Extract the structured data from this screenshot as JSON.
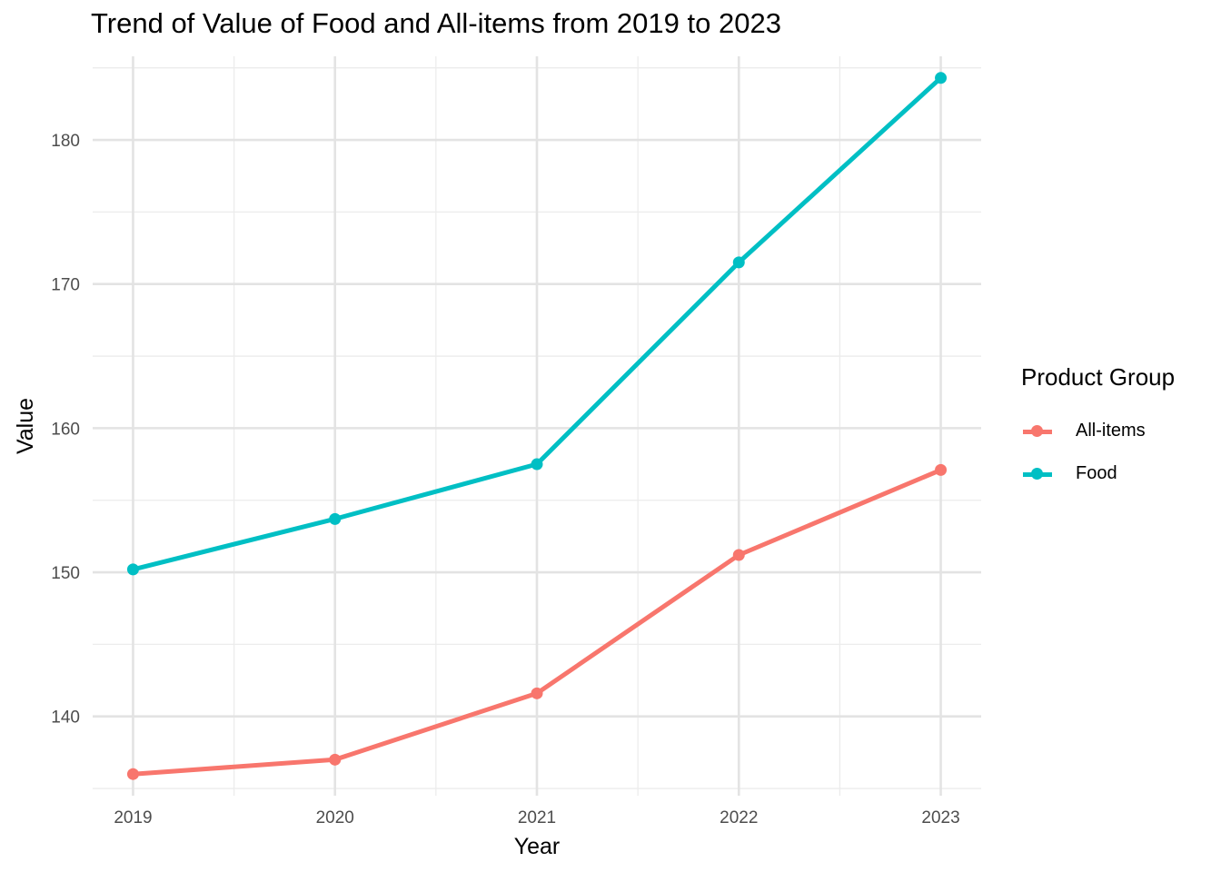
{
  "chart_data": {
    "type": "line",
    "title": "Trend of Value of Food and All-items from 2019 to 2023",
    "xlabel": "Year",
    "ylabel": "Value",
    "x": [
      2019,
      2020,
      2021,
      2022,
      2023
    ],
    "x_tick_labels": [
      "2019",
      "2020",
      "2021",
      "2022",
      "2023"
    ],
    "y_ticks": [
      140,
      150,
      160,
      170,
      180
    ],
    "y_tick_labels": [
      "140",
      "150",
      "160",
      "170",
      "180"
    ],
    "ylim": [
      134.5,
      185.8
    ],
    "xlim": [
      2018.8,
      2023.2
    ],
    "grid": true,
    "legend": {
      "title": "Product Group",
      "position": "right"
    },
    "series": [
      {
        "name": "All-items",
        "color": "#F8766D",
        "values": [
          136.0,
          137.0,
          141.6,
          151.2,
          157.1
        ]
      },
      {
        "name": "Food",
        "color": "#00BFC4",
        "values": [
          150.2,
          153.7,
          157.5,
          171.5,
          184.3
        ]
      }
    ]
  }
}
